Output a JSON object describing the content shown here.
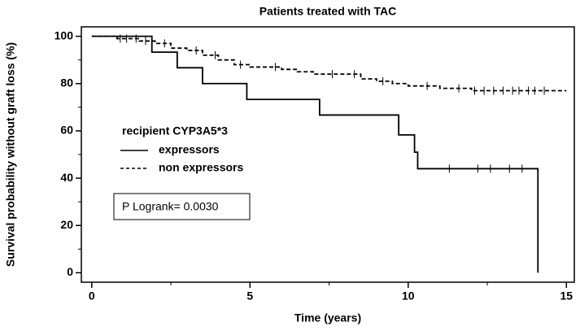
{
  "chart_data": {
    "type": "step",
    "title": "Patients treated with TAC",
    "x_label": "Time (years)",
    "y_label": "Survival probability without graft loss (%)",
    "xlim": [
      -0.33,
      15.25
    ],
    "ylim": [
      -4,
      104
    ],
    "xticks": [
      0,
      5,
      10,
      15
    ],
    "yticks": [
      0,
      20,
      40,
      60,
      80,
      100
    ],
    "xminor": [
      2.5,
      7.5,
      12.5
    ],
    "yminor": [
      10,
      30,
      50,
      70,
      90
    ],
    "legend_title": "recipient CYP3A5*3",
    "annotation": "P Logrank= 0.0030",
    "series": [
      {
        "name": "expressors",
        "color": "#000000",
        "dash": false,
        "x": [
          0,
          1.9,
          2.7,
          3.5,
          4.9,
          7.2,
          9.7,
          10.2,
          10.3,
          14.1
        ],
        "values": [
          100,
          93.3,
          86.7,
          80,
          73.3,
          66.7,
          58.3,
          51,
          44,
          0
        ],
        "censored": [
          11.3,
          12.2,
          12.6,
          13.2,
          13.6
        ]
      },
      {
        "name": "non expressors",
        "color": "#000000",
        "dash": true,
        "x": [
          0,
          0.8,
          1.5,
          2,
          2.5,
          3,
          3.5,
          4,
          4.5,
          5,
          6,
          6.5,
          7,
          8.5,
          9,
          9.5,
          10,
          11,
          12,
          15
        ],
        "values": [
          100,
          99,
          98,
          97,
          95,
          94,
          92,
          90,
          88,
          87,
          86,
          85,
          84,
          82,
          81,
          80,
          79,
          78,
          77,
          77
        ],
        "censored": [
          0.9,
          1.1,
          1.4,
          1.7,
          2.3,
          3.3,
          3.9,
          4.7,
          5.8,
          7.6,
          8.3,
          9.2,
          10.6,
          11.6,
          12.1,
          12.4,
          12.7,
          13.0,
          13.3,
          13.5,
          13.8,
          14.0,
          14.3
        ]
      }
    ]
  }
}
